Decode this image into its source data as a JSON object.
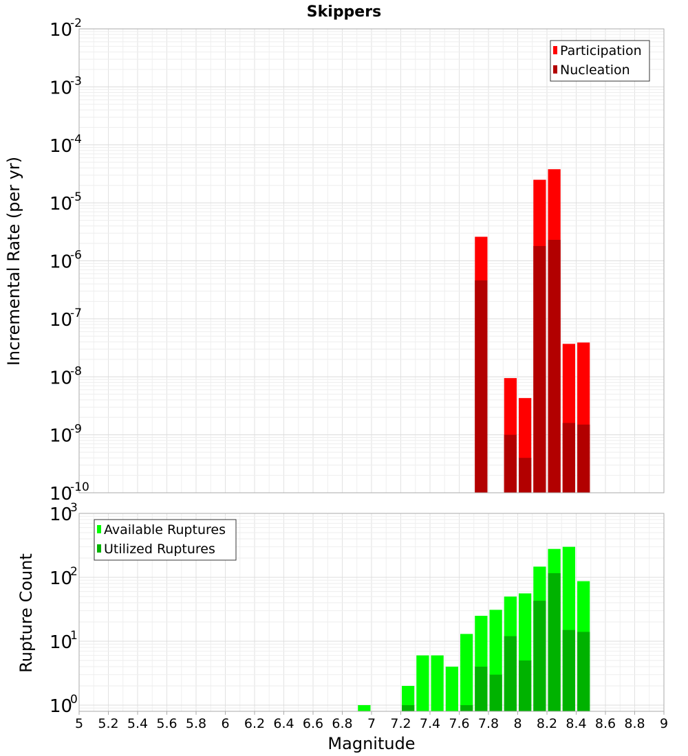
{
  "title": "Skippers",
  "xlabel": "Magnitude",
  "x_ticks": [
    "5",
    "5.2",
    "5.4",
    "5.6",
    "5.8",
    "6",
    "6.2",
    "6.4",
    "6.6",
    "6.8",
    "7",
    "7.2",
    "7.4",
    "7.6",
    "7.8",
    "8",
    "8.2",
    "8.4",
    "8.6",
    "8.8",
    "9"
  ],
  "chart_data": [
    {
      "type": "bar",
      "title": "Skippers",
      "xlabel": "Magnitude",
      "ylabel": "Incremental Rate (per yr)",
      "xlim": [
        5,
        9
      ],
      "ylim": [
        1e-10,
        0.01
      ],
      "yscale": "log",
      "y_tick_exponents": [
        -10,
        -9,
        -8,
        -7,
        -6,
        -5,
        -4,
        -3,
        -2
      ],
      "grid": true,
      "legend_position": "top-right",
      "bin_width": 0.1,
      "x": [
        7.75,
        7.95,
        8.05,
        8.15,
        8.25,
        8.35,
        8.45
      ],
      "series": [
        {
          "name": "Participation",
          "color": "#ff0000",
          "values": [
            2.6e-06,
            9.5e-09,
            4.3e-09,
            2.5e-05,
            3.8e-05,
            3.7e-08,
            3.9e-08
          ]
        },
        {
          "name": "Nucleation",
          "color": "#b20000",
          "values": [
            4.6e-07,
            1e-09,
            4e-10,
            1.8e-06,
            2.3e-06,
            1.6e-09,
            1.5e-09
          ]
        }
      ]
    },
    {
      "type": "bar",
      "xlabel": "Magnitude",
      "ylabel": "Rupture Count",
      "xlim": [
        5,
        9
      ],
      "ylim": [
        0.8,
        1000
      ],
      "yscale": "log",
      "y_tick_exponents": [
        0,
        1,
        2,
        3
      ],
      "grid": true,
      "legend_position": "top-left",
      "bin_width": 0.1,
      "x": [
        6.95,
        7.25,
        7.35,
        7.45,
        7.55,
        7.65,
        7.75,
        7.85,
        7.95,
        8.05,
        8.15,
        8.25,
        8.35,
        8.45
      ],
      "series": [
        {
          "name": "Available Ruptures",
          "color": "#00ff00",
          "values": [
            1,
            2,
            6,
            6,
            4,
            13,
            25,
            31,
            50,
            56,
            147,
            278,
            300,
            87
          ]
        },
        {
          "name": "Utilized Ruptures",
          "color": "#00b200",
          "values": [
            0,
            1,
            0,
            0,
            0,
            1,
            4,
            3,
            12,
            5,
            43,
            116,
            15,
            14
          ]
        }
      ]
    }
  ]
}
